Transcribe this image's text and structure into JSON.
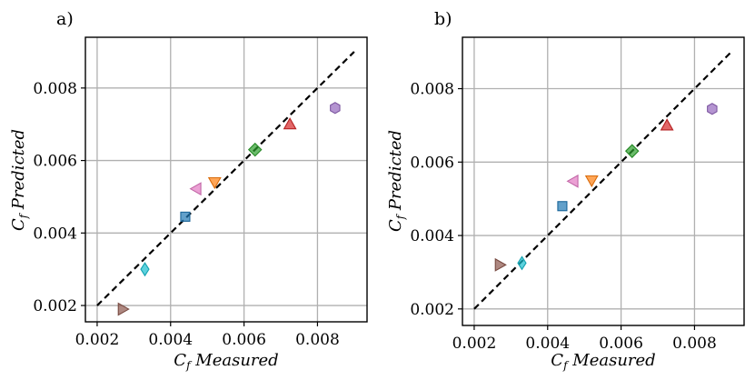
{
  "chart_data": [
    {
      "panel_label": "a)",
      "type": "scatter",
      "xlabel": "C_f Measured",
      "ylabel": "C_f Predicted",
      "xlabel_parts": {
        "symbol": "C",
        "sub": "f",
        "text": "Measured"
      },
      "ylabel_parts": {
        "symbol": "C",
        "sub": "f",
        "text": "Predicted"
      },
      "xlim": [
        0.00168,
        0.00935
      ],
      "ylim": [
        0.00155,
        0.0094
      ],
      "xticks": [
        0.002,
        0.004,
        0.006,
        0.008
      ],
      "xtick_labels": [
        "0.002",
        "0.004",
        "0.006",
        "0.008"
      ],
      "yticks": [
        0.002,
        0.004,
        0.006,
        0.008
      ],
      "ytick_labels": [
        "0.002",
        "0.004",
        "0.006",
        "0.008"
      ],
      "grid": true,
      "reference_line": {
        "x": [
          0.002,
          0.009
        ],
        "y": [
          0.002,
          0.009
        ],
        "style": "dashed"
      },
      "points": [
        {
          "x": 0.0044,
          "y": 0.00445,
          "marker": "square",
          "color": "#1f77b4"
        },
        {
          "x": 0.0052,
          "y": 0.0054,
          "marker": "triangle-down",
          "color": "#ff7f0e"
        },
        {
          "x": 0.0063,
          "y": 0.0063,
          "marker": "diamond",
          "color": "#2ca02c"
        },
        {
          "x": 0.00725,
          "y": 0.007,
          "marker": "triangle-up",
          "color": "#d62728"
        },
        {
          "x": 0.00848,
          "y": 0.00745,
          "marker": "hexagon",
          "color": "#9467bd"
        },
        {
          "x": 0.0027,
          "y": 0.0019,
          "marker": "triangle-right",
          "color": "#8c564b"
        },
        {
          "x": 0.0047,
          "y": 0.00522,
          "marker": "triangle-left",
          "color": "#e377c2"
        },
        {
          "x": 0.0033,
          "y": 0.003,
          "marker": "thin-diamond",
          "color": "#17becf"
        }
      ]
    },
    {
      "panel_label": "b)",
      "type": "scatter",
      "xlabel": "C_f Measured",
      "ylabel": "C_f Predicted",
      "xlabel_parts": {
        "symbol": "C",
        "sub": "f",
        "text": "Measured"
      },
      "ylabel_parts": {
        "symbol": "C",
        "sub": "f",
        "text": "Predicted"
      },
      "xlim": [
        0.00168,
        0.00935
      ],
      "ylim": [
        0.00155,
        0.0094
      ],
      "xticks": [
        0.002,
        0.004,
        0.006,
        0.008
      ],
      "xtick_labels": [
        "0.002",
        "0.004",
        "0.006",
        "0.008"
      ],
      "yticks": [
        0.002,
        0.004,
        0.006,
        0.008
      ],
      "ytick_labels": [
        "0.002",
        "0.004",
        "0.006",
        "0.008"
      ],
      "grid": true,
      "reference_line": {
        "x": [
          0.002,
          0.009
        ],
        "y": [
          0.002,
          0.009
        ],
        "style": "dashed"
      },
      "points": [
        {
          "x": 0.0044,
          "y": 0.0048,
          "marker": "square",
          "color": "#1f77b4"
        },
        {
          "x": 0.0052,
          "y": 0.0055,
          "marker": "triangle-down",
          "color": "#ff7f0e"
        },
        {
          "x": 0.0063,
          "y": 0.0063,
          "marker": "diamond",
          "color": "#2ca02c"
        },
        {
          "x": 0.00725,
          "y": 0.007,
          "marker": "triangle-up",
          "color": "#d62728"
        },
        {
          "x": 0.00848,
          "y": 0.00745,
          "marker": "hexagon",
          "color": "#9467bd"
        },
        {
          "x": 0.0027,
          "y": 0.0032,
          "marker": "triangle-right",
          "color": "#8c564b"
        },
        {
          "x": 0.0047,
          "y": 0.00548,
          "marker": "triangle-left",
          "color": "#e377c2"
        },
        {
          "x": 0.0033,
          "y": 0.00325,
          "marker": "thin-diamond",
          "color": "#17becf"
        }
      ]
    }
  ]
}
